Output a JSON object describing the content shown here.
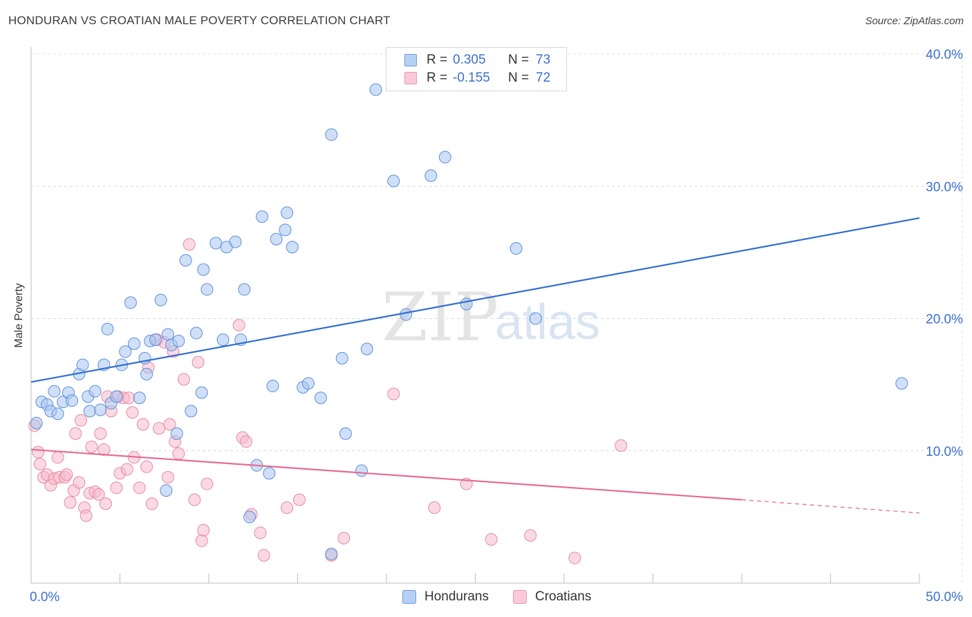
{
  "header": {
    "title": "HONDURAN VS CROATIAN MALE POVERTY CORRELATION CHART",
    "source": "Source: ZipAtlas.com"
  },
  "colors": {
    "blue_fill": "#a7c5f0",
    "blue_stroke": "#5b8fd8",
    "blue_line": "#2f6fcf",
    "pink_fill": "#f7b9cb",
    "pink_stroke": "#e38aa5",
    "pink_line": "#e46c93",
    "accent_text": "#3b6fd0"
  },
  "legend": {
    "series": [
      {
        "r_label": "R =",
        "r_value": "0.305",
        "n_label": "N =",
        "n_value": "73"
      },
      {
        "r_label": "R =",
        "r_value": "-0.155",
        "n_label": "N =",
        "n_value": "72"
      }
    ],
    "bottom": [
      "Hondurans",
      "Croatians"
    ]
  },
  "chart_data": {
    "type": "scatter",
    "title": "HONDURAN VS CROATIAN MALE POVERTY CORRELATION CHART",
    "xlabel": "",
    "ylabel": "Male Poverty",
    "xlim": [
      0,
      50
    ],
    "ylim": [
      0,
      40
    ],
    "x_tick_labels": [
      "0.0%",
      "50.0%"
    ],
    "y_ticks": [
      10,
      20,
      30,
      40
    ],
    "y_tick_labels": [
      "10.0%",
      "20.0%",
      "30.0%",
      "40.0%"
    ],
    "watermark": {
      "zip": "ZIP",
      "atlas": "atlas"
    },
    "series": [
      {
        "name": "Hondurans",
        "r": 0.305,
        "n": 73,
        "trend": {
          "x0": 0,
          "y0": 15.2,
          "x1": 50,
          "y1": 27.6
        },
        "points": [
          [
            0.3,
            12.1
          ],
          [
            0.6,
            13.7
          ],
          [
            0.9,
            13.5
          ],
          [
            1.1,
            13.0
          ],
          [
            1.3,
            14.5
          ],
          [
            1.5,
            12.8
          ],
          [
            1.8,
            13.7
          ],
          [
            2.1,
            14.4
          ],
          [
            2.3,
            13.8
          ],
          [
            2.7,
            15.8
          ],
          [
            2.9,
            16.5
          ],
          [
            3.2,
            14.1
          ],
          [
            3.3,
            13.0
          ],
          [
            3.6,
            14.5
          ],
          [
            3.9,
            13.1
          ],
          [
            4.1,
            16.5
          ],
          [
            4.3,
            19.2
          ],
          [
            4.5,
            13.6
          ],
          [
            4.8,
            14.1
          ],
          [
            5.1,
            16.5
          ],
          [
            5.3,
            17.5
          ],
          [
            5.6,
            21.2
          ],
          [
            5.8,
            18.1
          ],
          [
            6.1,
            14.0
          ],
          [
            6.4,
            17.0
          ],
          [
            6.5,
            15.8
          ],
          [
            6.7,
            18.3
          ],
          [
            7.0,
            18.4
          ],
          [
            7.3,
            21.4
          ],
          [
            7.6,
            7.0
          ],
          [
            7.7,
            18.8
          ],
          [
            7.9,
            18.0
          ],
          [
            8.2,
            11.3
          ],
          [
            8.3,
            18.3
          ],
          [
            8.7,
            24.4
          ],
          [
            9.0,
            13.0
          ],
          [
            9.3,
            18.9
          ],
          [
            9.6,
            14.4
          ],
          [
            9.7,
            23.7
          ],
          [
            9.9,
            22.2
          ],
          [
            10.4,
            25.7
          ],
          [
            10.8,
            18.4
          ],
          [
            11.0,
            25.4
          ],
          [
            11.5,
            25.8
          ],
          [
            11.8,
            18.4
          ],
          [
            12.0,
            22.2
          ],
          [
            12.3,
            5.0
          ],
          [
            12.7,
            8.9
          ],
          [
            13.0,
            27.7
          ],
          [
            13.4,
            8.3
          ],
          [
            13.6,
            14.9
          ],
          [
            13.8,
            26.0
          ],
          [
            14.3,
            26.7
          ],
          [
            14.4,
            28.0
          ],
          [
            14.7,
            25.4
          ],
          [
            15.3,
            14.8
          ],
          [
            15.6,
            15.1
          ],
          [
            16.3,
            14.0
          ],
          [
            16.9,
            2.2
          ],
          [
            16.9,
            33.9
          ],
          [
            17.5,
            17.0
          ],
          [
            17.7,
            11.3
          ],
          [
            18.6,
            8.5
          ],
          [
            18.9,
            17.7
          ],
          [
            19.4,
            37.3
          ],
          [
            20.4,
            30.4
          ],
          [
            21.1,
            20.3
          ],
          [
            22.5,
            30.8
          ],
          [
            23.3,
            32.2
          ],
          [
            24.5,
            21.1
          ],
          [
            27.3,
            25.3
          ],
          [
            28.4,
            20.0
          ],
          [
            49.0,
            15.1
          ]
        ]
      },
      {
        "name": "Croatians",
        "r": -0.155,
        "n": 72,
        "trend": {
          "x0": 0,
          "y0": 10.1,
          "x1": 40,
          "y1": 6.3,
          "dash_x1": 50,
          "dash_y1": 5.3
        },
        "points": [
          [
            0.2,
            11.9
          ],
          [
            0.4,
            9.9
          ],
          [
            0.5,
            9.0
          ],
          [
            0.7,
            8.0
          ],
          [
            0.9,
            8.2
          ],
          [
            1.1,
            7.4
          ],
          [
            1.3,
            7.9
          ],
          [
            1.5,
            9.5
          ],
          [
            1.6,
            8.0
          ],
          [
            1.9,
            8.0
          ],
          [
            2.0,
            8.2
          ],
          [
            2.2,
            6.1
          ],
          [
            2.4,
            7.0
          ],
          [
            2.5,
            11.3
          ],
          [
            2.7,
            7.6
          ],
          [
            2.8,
            12.3
          ],
          [
            3.0,
            5.7
          ],
          [
            3.1,
            5.1
          ],
          [
            3.3,
            6.8
          ],
          [
            3.4,
            10.3
          ],
          [
            3.6,
            6.9
          ],
          [
            3.8,
            6.7
          ],
          [
            3.9,
            11.3
          ],
          [
            4.1,
            10.1
          ],
          [
            4.2,
            6.0
          ],
          [
            4.3,
            14.1
          ],
          [
            4.5,
            13.0
          ],
          [
            4.8,
            7.2
          ],
          [
            4.9,
            14.1
          ],
          [
            5.0,
            8.3
          ],
          [
            5.2,
            14.0
          ],
          [
            5.4,
            8.6
          ],
          [
            5.5,
            14.0
          ],
          [
            5.7,
            12.9
          ],
          [
            5.8,
            9.5
          ],
          [
            6.1,
            7.2
          ],
          [
            6.3,
            12.0
          ],
          [
            6.5,
            8.8
          ],
          [
            6.6,
            16.3
          ],
          [
            6.8,
            6.0
          ],
          [
            7.1,
            18.4
          ],
          [
            7.2,
            11.7
          ],
          [
            7.5,
            18.2
          ],
          [
            7.7,
            8.0
          ],
          [
            7.8,
            12.0
          ],
          [
            8.0,
            17.5
          ],
          [
            8.1,
            10.7
          ],
          [
            8.3,
            9.8
          ],
          [
            8.6,
            15.4
          ],
          [
            8.9,
            25.6
          ],
          [
            9.2,
            6.3
          ],
          [
            9.4,
            16.7
          ],
          [
            9.6,
            3.2
          ],
          [
            9.7,
            4.0
          ],
          [
            9.9,
            7.5
          ],
          [
            11.7,
            19.5
          ],
          [
            11.9,
            11.0
          ],
          [
            12.1,
            10.7
          ],
          [
            12.4,
            5.2
          ],
          [
            12.9,
            3.8
          ],
          [
            13.1,
            2.1
          ],
          [
            14.4,
            5.7
          ],
          [
            15.1,
            6.3
          ],
          [
            16.9,
            2.1
          ],
          [
            17.6,
            3.4
          ],
          [
            20.4,
            14.3
          ],
          [
            22.7,
            5.7
          ],
          [
            24.5,
            7.5
          ],
          [
            25.9,
            3.3
          ],
          [
            28.1,
            3.6
          ],
          [
            33.2,
            10.4
          ],
          [
            30.6,
            1.9
          ]
        ]
      }
    ]
  }
}
